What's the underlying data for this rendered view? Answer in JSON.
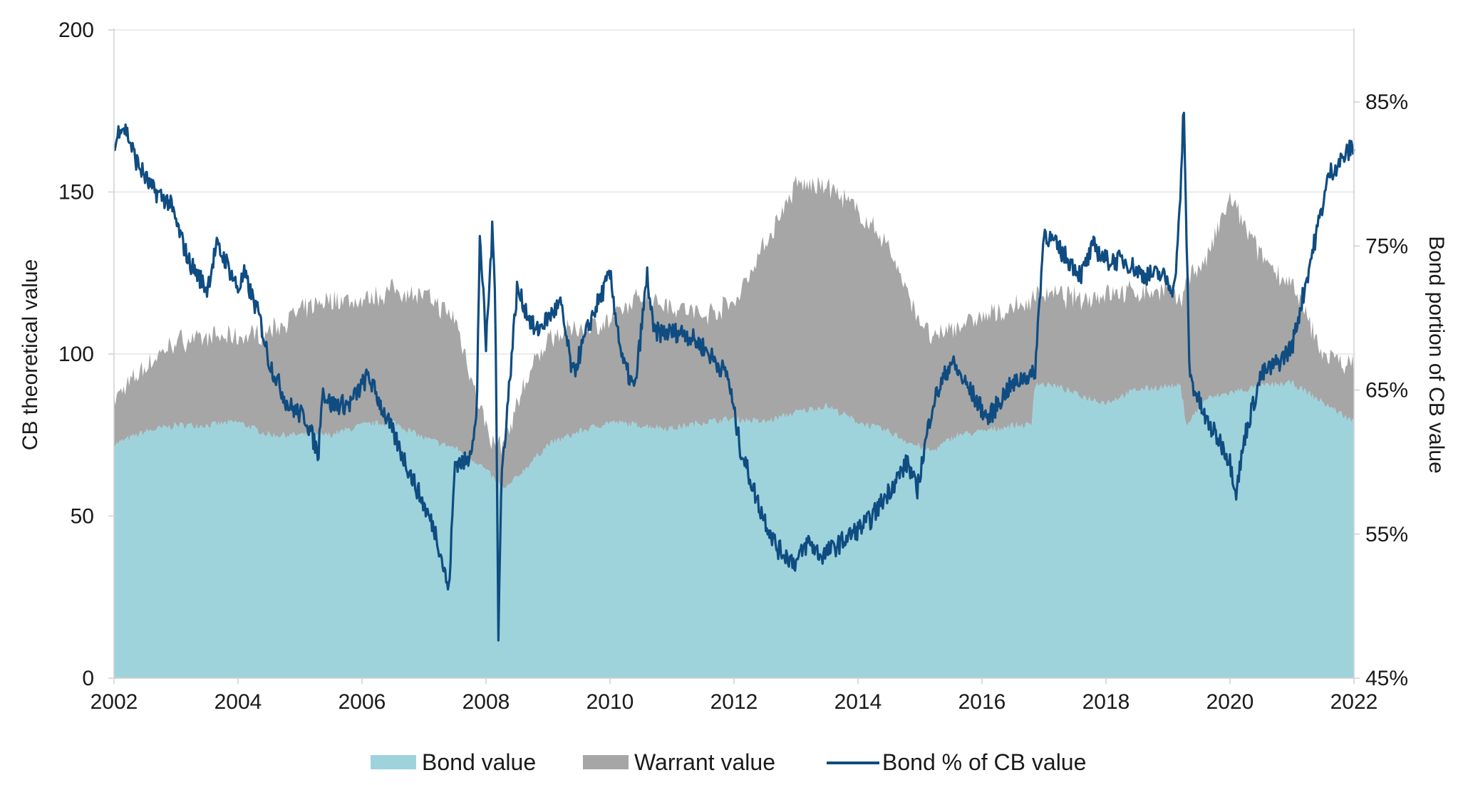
{
  "chart_data": {
    "type": "area",
    "title": "",
    "xlabel": "",
    "ylabel": "CB theoretical value",
    "y2label": "Bond portion of CB value",
    "xlim": [
      2002,
      2022
    ],
    "ylim": [
      0,
      200
    ],
    "y2lim": [
      45,
      90
    ],
    "x_ticks": [
      "2002",
      "2004",
      "2006",
      "2008",
      "2010",
      "2012",
      "2014",
      "2016",
      "2018",
      "2020",
      "2022"
    ],
    "y_ticks": [
      "0",
      "50",
      "100",
      "150",
      "200"
    ],
    "y2_ticks": [
      "45%",
      "55%",
      "65%",
      "75%",
      "85%"
    ],
    "grid": "horizontal",
    "legend_position": "bottom",
    "colors": {
      "bond": "#9ed3dc",
      "warrant": "#a6a6a6",
      "pct": "#0f4c81",
      "grid": "#e6e6e6",
      "axis": "#d0d0d0"
    },
    "series": [
      {
        "name": "Bond value",
        "axis": "left",
        "kind": "stacked-area",
        "x": [
          2002.0,
          2002.5,
          2003.0,
          2003.5,
          2004.0,
          2004.5,
          2005.0,
          2005.5,
          2006.0,
          2006.5,
          2007.0,
          2007.5,
          2007.9,
          2008.1,
          2008.3,
          2008.6,
          2009.0,
          2009.5,
          2010.0,
          2010.5,
          2011.0,
          2011.5,
          2012.0,
          2012.5,
          2013.0,
          2013.5,
          2014.0,
          2014.5,
          2014.9,
          2015.2,
          2015.6,
          2016.0,
          2016.5,
          2016.8,
          2016.85,
          2017.2,
          2017.6,
          2018.0,
          2018.5,
          2019.0,
          2019.2,
          2019.3,
          2019.6,
          2020.0,
          2020.5,
          2021.0,
          2021.5,
          2022.0
        ],
        "values": [
          72,
          76,
          78,
          78,
          79,
          75,
          75,
          75,
          78,
          79,
          74,
          71,
          66,
          62,
          58,
          64,
          72,
          76,
          79,
          78,
          77,
          79,
          80,
          79,
          82,
          84,
          79,
          76,
          72,
          70,
          75,
          76,
          78,
          78,
          91,
          90,
          87,
          85,
          89,
          90,
          90,
          78,
          86,
          88,
          90,
          91,
          85,
          79
        ]
      },
      {
        "name": "Warrant value",
        "axis": "left",
        "kind": "stacked-area",
        "x": [
          2002.0,
          2002.5,
          2003.0,
          2003.5,
          2004.0,
          2004.5,
          2005.0,
          2005.5,
          2006.0,
          2006.5,
          2007.0,
          2007.5,
          2007.9,
          2008.1,
          2008.3,
          2008.6,
          2009.0,
          2009.5,
          2010.0,
          2010.5,
          2011.0,
          2011.5,
          2012.0,
          2012.5,
          2013.0,
          2013.5,
          2014.0,
          2014.5,
          2014.9,
          2015.2,
          2015.6,
          2016.0,
          2016.5,
          2016.8,
          2016.85,
          2017.2,
          2017.6,
          2018.0,
          2018.5,
          2019.0,
          2019.2,
          2019.3,
          2019.6,
          2020.0,
          2020.5,
          2021.0,
          2021.5,
          2022.0
        ],
        "values": [
          14,
          20,
          26,
          27,
          26,
          32,
          38,
          42,
          38,
          41,
          44,
          40,
          18,
          10,
          14,
          26,
          33,
          32,
          31,
          40,
          38,
          33,
          36,
          55,
          70,
          68,
          65,
          57,
          42,
          34,
          34,
          35,
          36,
          38,
          28,
          28,
          30,
          34,
          30,
          30,
          25,
          46,
          42,
          60,
          40,
          30,
          15,
          17
        ]
      },
      {
        "name": "Bond % of CB value",
        "axis": "right",
        "kind": "line",
        "x": [
          2002.0,
          2002.1,
          2002.2,
          2002.35,
          2002.6,
          2002.9,
          2003.2,
          2003.5,
          2003.65,
          2003.8,
          2004.0,
          2004.1,
          2004.35,
          2004.5,
          2004.8,
          2005.1,
          2005.3,
          2005.35,
          2005.5,
          2005.8,
          2006.1,
          2006.4,
          2006.7,
          2007.0,
          2007.2,
          2007.4,
          2007.5,
          2007.7,
          2007.85,
          2007.9,
          2008.0,
          2008.1,
          2008.15,
          2008.2,
          2008.25,
          2008.35,
          2008.5,
          2008.8,
          2009.0,
          2009.2,
          2009.4,
          2009.7,
          2010.0,
          2010.2,
          2010.4,
          2010.6,
          2010.7,
          2010.9,
          2011.2,
          2011.5,
          2011.9,
          2012.1,
          2012.4,
          2012.7,
          2013.0,
          2013.2,
          2013.4,
          2013.6,
          2013.9,
          2014.2,
          2014.5,
          2014.8,
          2014.95,
          2015.2,
          2015.5,
          2015.8,
          2016.1,
          2016.4,
          2016.7,
          2016.85,
          2017.0,
          2017.2,
          2017.4,
          2017.6,
          2017.8,
          2018.0,
          2018.3,
          2018.6,
          2018.9,
          2019.1,
          2019.2,
          2019.25,
          2019.35,
          2019.6,
          2019.9,
          2020.0,
          2020.1,
          2020.25,
          2020.5,
          2020.8,
          2021.0,
          2021.2,
          2021.4,
          2021.6,
          2021.8,
          2022.0
        ],
        "values": [
          81.5,
          83.5,
          83,
          81,
          79,
          78,
          74,
          72,
          75,
          74,
          72,
          73,
          70,
          67,
          64,
          63,
          60.5,
          65,
          64,
          64,
          66,
          63,
          60,
          57,
          55,
          51,
          60,
          60,
          63,
          76,
          68,
          76,
          72,
          48,
          59,
          64,
          72,
          69,
          70,
          71,
          66,
          70,
          73,
          67,
          65,
          73,
          69,
          69,
          69,
          68,
          66,
          61,
          57,
          54,
          53,
          54.5,
          53.5,
          54,
          55,
          56,
          58,
          60,
          58,
          64,
          67,
          65,
          63,
          65,
          66,
          66,
          76,
          75,
          74,
          73,
          75,
          74,
          74,
          73,
          73,
          72,
          78,
          85,
          66,
          63,
          61,
          60,
          58,
          62,
          66,
          67,
          68,
          72,
          76,
          80,
          81,
          82
        ]
      }
    ]
  },
  "legend": {
    "bond_label": "Bond value",
    "warrant_label": "Warrant value",
    "pct_label": "Bond % of CB value"
  }
}
